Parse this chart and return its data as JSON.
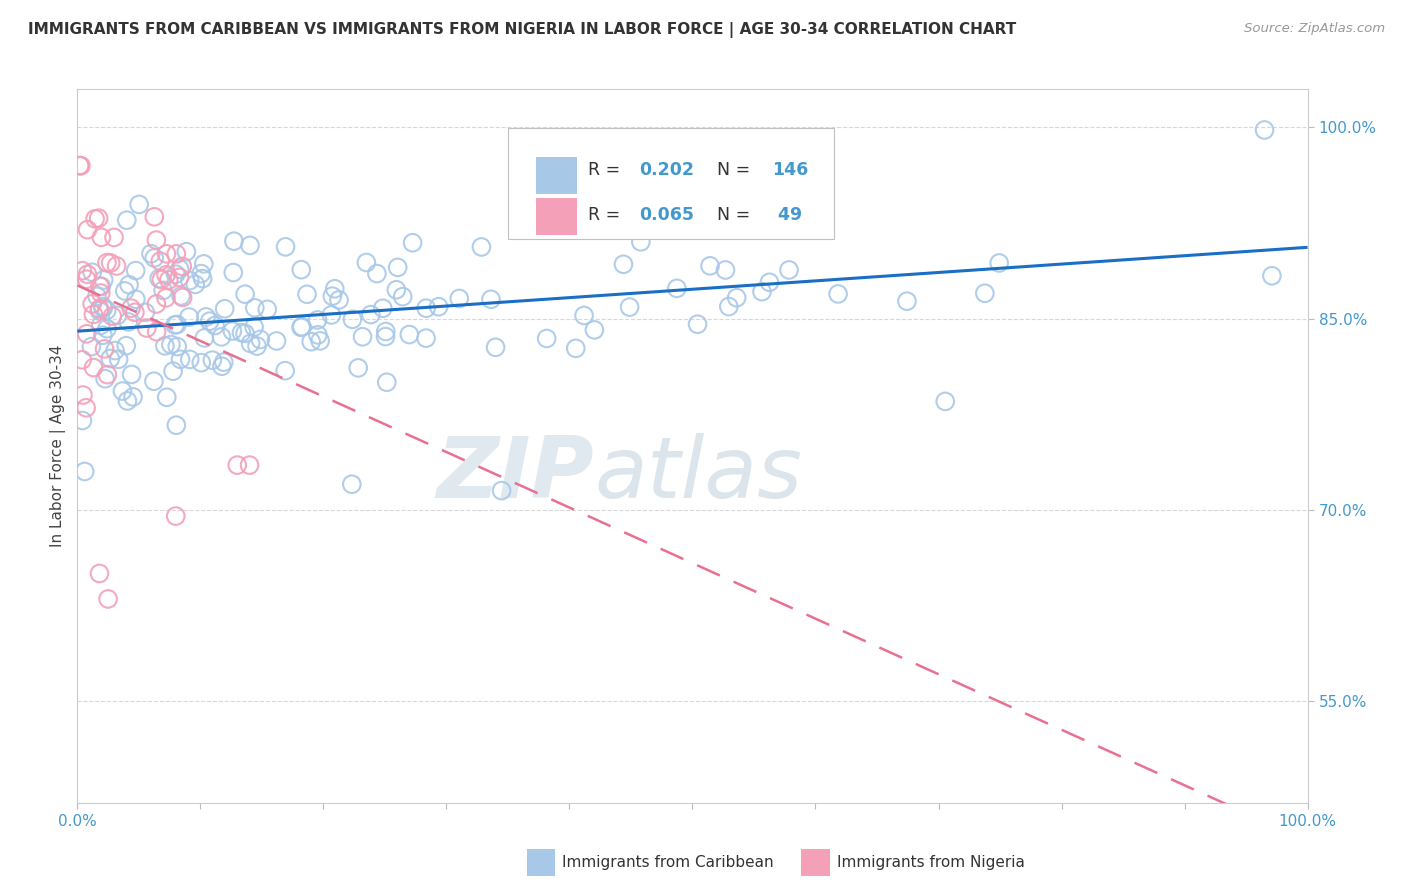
{
  "title": "IMMIGRANTS FROM CARIBBEAN VS IMMIGRANTS FROM NIGERIA IN LABOR FORCE | AGE 30-34 CORRELATION CHART",
  "source": "Source: ZipAtlas.com",
  "ylabel": "In Labor Force | Age 30-34",
  "ytick_labels": [
    "55.0%",
    "70.0%",
    "85.0%",
    "100.0%"
  ],
  "ytick_vals": [
    0.55,
    0.7,
    0.85,
    1.0
  ],
  "xtick_labels": [
    "0.0%",
    "100.0%"
  ],
  "xtick_vals": [
    0.0,
    1.0
  ],
  "watermark_zip": "ZIP",
  "watermark_atlas": "atlas",
  "line_caribbean_color": "#1a6fc4",
  "line_nigeria_color": "#e87090",
  "dot_caribbean_color": "#a8c8e8",
  "dot_nigeria_color": "#f4a0b8",
  "background_color": "#ffffff",
  "grid_color": "#d8d8d8",
  "tick_label_color": "#4499cc",
  "legend_r1_val": "0.202",
  "legend_r1_n": "146",
  "legend_r2_val": "0.065",
  "legend_r2_n": "49",
  "bottom_legend_caribbean": "Immigrants from Caribbean",
  "bottom_legend_nigeria": "Immigrants from Nigeria"
}
